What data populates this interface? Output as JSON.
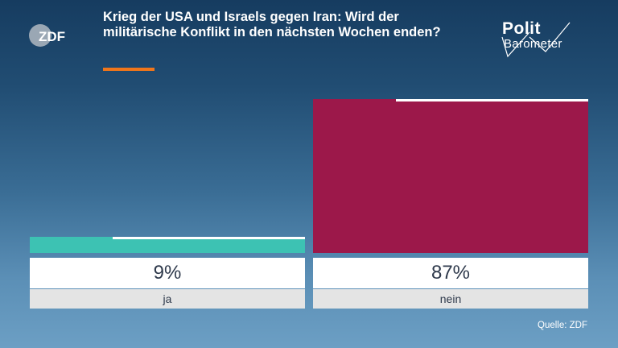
{
  "header": {
    "title": "Krieg der USA und Israels gegen Iran: Wird der militärische Konflikt in den nächsten Wochen enden?",
    "logo_left": "ZDF",
    "logo_right_line1": "Polit",
    "logo_right_line2": "Barometer"
  },
  "colors": {
    "accent": "#f0761b",
    "ja": "#3dc2b3",
    "nein": "#9c184a"
  },
  "footer": {
    "source": "Quelle: ZDF"
  },
  "chart_data": {
    "type": "bar",
    "categories": [
      "ja",
      "nein"
    ],
    "values": [
      9,
      87
    ],
    "value_labels": [
      "9%",
      "87%"
    ],
    "unit": "%",
    "ylim": [
      0,
      100
    ],
    "grid": false,
    "legend": "none"
  }
}
